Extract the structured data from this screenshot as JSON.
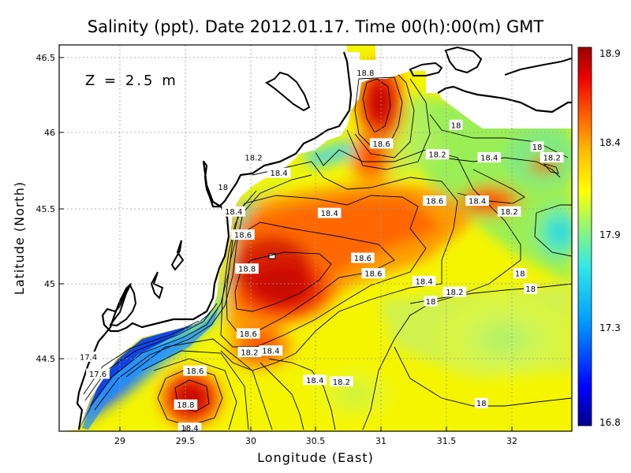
{
  "title": "Salinity (ppt). Date 2012.01.17. Time 00(h):00(m) GMT",
  "depth_label": "Z = 2.5 m",
  "chart_data": {
    "type": "heatmap",
    "xlabel": "Longitude (East)",
    "ylabel": "Latitude (North)",
    "xlim": [
      28.6,
      32.45
    ],
    "ylim": [
      44.05,
      46.55
    ],
    "x_ticks": [
      "29",
      "29.5",
      "30",
      "30.5",
      "31",
      "31.5",
      "32"
    ],
    "y_ticks": [
      "44.5",
      "45",
      "45.5",
      "46",
      "46.5"
    ],
    "colorbar": {
      "ticks": [
        "16.8",
        "17.3",
        "17.9",
        "18.4",
        "18.9"
      ],
      "min": 16.8,
      "max": 18.9,
      "colors": [
        "#00008b",
        "#0000ff",
        "#00c8ff",
        "#34e8e0",
        "#8ff57a",
        "#ffff00",
        "#ffc800",
        "#ff6400",
        "#ff0000",
        "#a00000"
      ]
    },
    "contour_labels": [
      {
        "text": "18.8",
        "lon": 30.9,
        "lat": 46.37
      },
      {
        "text": "18.6",
        "lon": 31.02,
        "lat": 45.91
      },
      {
        "text": "18.2",
        "lon": 30.06,
        "lat": 45.82
      },
      {
        "text": "18.4",
        "lon": 30.25,
        "lat": 45.72
      },
      {
        "text": "18",
        "lon": 29.83,
        "lat": 45.63
      },
      {
        "text": "18.4",
        "lon": 29.91,
        "lat": 45.47
      },
      {
        "text": "18.6",
        "lon": 29.98,
        "lat": 45.32
      },
      {
        "text": "18.4",
        "lon": 30.63,
        "lat": 45.46
      },
      {
        "text": "18.6",
        "lon": 31.42,
        "lat": 45.54
      },
      {
        "text": "18.4",
        "lon": 31.74,
        "lat": 45.54
      },
      {
        "text": "18.2",
        "lon": 31.98,
        "lat": 45.47
      },
      {
        "text": "18",
        "lon": 31.58,
        "lat": 46.03
      },
      {
        "text": "18.2",
        "lon": 31.44,
        "lat": 45.84
      },
      {
        "text": "18.4",
        "lon": 31.83,
        "lat": 45.82
      },
      {
        "text": "18",
        "lon": 32.19,
        "lat": 45.89
      },
      {
        "text": "18.2",
        "lon": 32.3,
        "lat": 45.82
      },
      {
        "text": "18.8",
        "lon": 30.01,
        "lat": 45.1
      },
      {
        "text": "18.6",
        "lon": 30.88,
        "lat": 45.17
      },
      {
        "text": "18.6",
        "lon": 30.96,
        "lat": 45.07
      },
      {
        "text": "18.4",
        "lon": 31.34,
        "lat": 45.02
      },
      {
        "text": "18.2",
        "lon": 31.57,
        "lat": 44.95
      },
      {
        "text": "18",
        "lon": 31.39,
        "lat": 44.89
      },
      {
        "text": "18",
        "lon": 32.06,
        "lat": 45.07
      },
      {
        "text": "18",
        "lon": 32.14,
        "lat": 44.97
      },
      {
        "text": "18.6",
        "lon": 30.02,
        "lat": 44.68
      },
      {
        "text": "18.2",
        "lon": 30.03,
        "lat": 44.56
      },
      {
        "text": "18.4",
        "lon": 30.19,
        "lat": 44.57
      },
      {
        "text": "18.4",
        "lon": 30.52,
        "lat": 44.38
      },
      {
        "text": "18.2",
        "lon": 30.72,
        "lat": 44.37
      },
      {
        "text": "17.4",
        "lon": 28.82,
        "lat": 44.53
      },
      {
        "text": "17.6",
        "lon": 28.89,
        "lat": 44.42
      },
      {
        "text": "18.6",
        "lon": 29.62,
        "lat": 44.44
      },
      {
        "text": "18.8",
        "lon": 29.55,
        "lat": 44.22
      },
      {
        "text": "18.4",
        "lon": 29.58,
        "lat": 44.07
      },
      {
        "text": "18",
        "lon": 31.77,
        "lat": 44.23
      }
    ]
  }
}
